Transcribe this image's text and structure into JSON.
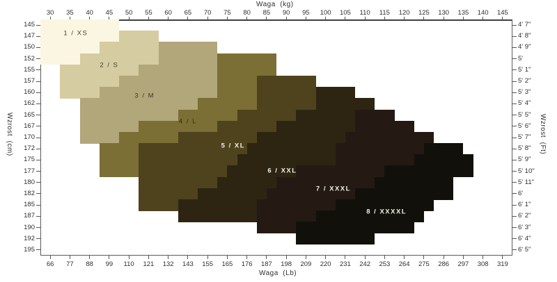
{
  "chart_data": {
    "type": "heatmap",
    "description": "Tights size chart: 8 stair-stepped size bands mapped over weight (x) and height (y)",
    "title_top": "Waga  (kg)",
    "title_bottom": "Waga  (Lb)",
    "title_left": "Wzrost  (cm)",
    "title_right": "Wzrost  (Ft)",
    "axes": {
      "kg_min": 27.5,
      "kg_max": 147.5,
      "row_count": 21,
      "grid": false,
      "top_kg": [
        30,
        35,
        40,
        45,
        50,
        55,
        60,
        65,
        70,
        75,
        80,
        85,
        90,
        95,
        100,
        105,
        110,
        115,
        120,
        125,
        130,
        135,
        140,
        145
      ],
      "bottom_lb": [
        66,
        77,
        88,
        99,
        110,
        121,
        132,
        143,
        155,
        165,
        176,
        187,
        198,
        209,
        220,
        231,
        242,
        253,
        264,
        275,
        286,
        297,
        308,
        319
      ],
      "left_cm": [
        145,
        147,
        150,
        152,
        155,
        157,
        160,
        162,
        165,
        167,
        170,
        172,
        175,
        177,
        180,
        182,
        185,
        187,
        190,
        192,
        195
      ],
      "right_ft": [
        "4' 7\"",
        "4' 8\"",
        "4' 9\"",
        "5'",
        "5' 1\"",
        "5' 2\"",
        "5' 3\"",
        "5' 4\"",
        "5' 5\"",
        "5' 6\"",
        "5' 7\"",
        "5' 8\"",
        "5' 9\"",
        "5' 10\"",
        "5' 11\"",
        "6'",
        "6' 1\"",
        "6' 2\"",
        "6' 3\"",
        "6' 4\"",
        "6' 5\""
      ]
    },
    "sizes": [
      {
        "id": 1,
        "label": "1 / XS",
        "color": "#faf6e1",
        "label_color": "#46412c",
        "label_bold": false,
        "label_kg": 36.5,
        "label_row": 0.74,
        "rows": [
          {
            "r": 0,
            "a": 27.5,
            "b": 47.5
          },
          {
            "r": 1,
            "a": 27.5,
            "b": 47.5
          },
          {
            "r": 2,
            "a": 27.5,
            "b": 42.5
          },
          {
            "r": 3,
            "a": 27.5,
            "b": 37.5
          }
        ]
      },
      {
        "id": 2,
        "label": "2 / S",
        "color": "#d5cca1",
        "label_color": "#46412c",
        "label_bold": false,
        "label_kg": 45,
        "label_row": 3.58,
        "rows": [
          {
            "r": 1,
            "a": 47.5,
            "b": 57.5
          },
          {
            "r": 2,
            "a": 42.5,
            "b": 57.5
          },
          {
            "r": 3,
            "a": 37.5,
            "b": 57.5
          },
          {
            "r": 4,
            "a": 32.5,
            "b": 52.5
          },
          {
            "r": 5,
            "a": 32.5,
            "b": 47.5
          },
          {
            "r": 6,
            "a": 32.5,
            "b": 42.5
          }
        ]
      },
      {
        "id": 3,
        "label": "3 / M",
        "color": "#b1a77b",
        "label_color": "#3e3a26",
        "label_bold": false,
        "label_kg": 54,
        "label_row": 6.3,
        "rows": [
          {
            "r": 2,
            "a": 57.5,
            "b": 72.5
          },
          {
            "r": 3,
            "a": 57.5,
            "b": 72.5
          },
          {
            "r": 4,
            "a": 52.5,
            "b": 72.5
          },
          {
            "r": 5,
            "a": 47.5,
            "b": 72.5
          },
          {
            "r": 6,
            "a": 42.5,
            "b": 72.5
          },
          {
            "r": 7,
            "a": 37.5,
            "b": 67.5
          },
          {
            "r": 8,
            "a": 37.5,
            "b": 62.5
          },
          {
            "r": 9,
            "a": 37.5,
            "b": 52.5
          },
          {
            "r": 10,
            "a": 37.5,
            "b": 47.5
          }
        ]
      },
      {
        "id": 4,
        "label": "4 / L",
        "color": "#7b6f35",
        "label_color": "#332e15",
        "label_bold": false,
        "label_kg": 65,
        "label_row": 8.58,
        "rows": [
          {
            "r": 3,
            "a": 72.5,
            "b": 87.5
          },
          {
            "r": 4,
            "a": 72.5,
            "b": 87.5
          },
          {
            "r": 5,
            "a": 72.5,
            "b": 82.5
          },
          {
            "r": 6,
            "a": 72.5,
            "b": 82.5
          },
          {
            "r": 7,
            "a": 67.5,
            "b": 82.5
          },
          {
            "r": 8,
            "a": 62.5,
            "b": 77.5
          },
          {
            "r": 9,
            "a": 52.5,
            "b": 72.5
          },
          {
            "r": 10,
            "a": 47.5,
            "b": 62.5
          },
          {
            "r": 11,
            "a": 42.5,
            "b": 52.5
          },
          {
            "r": 12,
            "a": 42.5,
            "b": 52.5
          },
          {
            "r": 13,
            "a": 42.5,
            "b": 52.5
          }
        ]
      },
      {
        "id": 5,
        "label": "5 / XL",
        "color": "#4e431d",
        "label_color": "#f2f0e6",
        "label_bold": true,
        "label_kg": 76.5,
        "label_row": 10.74,
        "rows": [
          {
            "r": 5,
            "a": 82.5,
            "b": 97.5
          },
          {
            "r": 6,
            "a": 82.5,
            "b": 97.5
          },
          {
            "r": 7,
            "a": 82.5,
            "b": 97.5
          },
          {
            "r": 8,
            "a": 77.5,
            "b": 92.5
          },
          {
            "r": 9,
            "a": 72.5,
            "b": 87.5
          },
          {
            "r": 10,
            "a": 62.5,
            "b": 82.5
          },
          {
            "r": 11,
            "a": 52.5,
            "b": 80
          },
          {
            "r": 12,
            "a": 52.5,
            "b": 77.5
          },
          {
            "r": 13,
            "a": 52.5,
            "b": 75
          },
          {
            "r": 14,
            "a": 52.5,
            "b": 72.5
          },
          {
            "r": 15,
            "a": 52.5,
            "b": 67.5
          },
          {
            "r": 16,
            "a": 52.5,
            "b": 62.5
          }
        ]
      },
      {
        "id": 6,
        "label": "6 / XXL",
        "color": "#2d2512",
        "label_color": "#f2f0e6",
        "label_bold": true,
        "label_kg": 89,
        "label_row": 12.96,
        "rows": [
          {
            "r": 6,
            "a": 97.5,
            "b": 107.5
          },
          {
            "r": 7,
            "a": 97.5,
            "b": 112.5
          },
          {
            "r": 8,
            "a": 92.5,
            "b": 107.5
          },
          {
            "r": 9,
            "a": 87.5,
            "b": 107.5
          },
          {
            "r": 10,
            "a": 82.5,
            "b": 105
          },
          {
            "r": 11,
            "a": 80,
            "b": 102.5
          },
          {
            "r": 12,
            "a": 77.5,
            "b": 102.5
          },
          {
            "r": 13,
            "a": 75,
            "b": 92.5
          },
          {
            "r": 14,
            "a": 72.5,
            "b": 87.5
          },
          {
            "r": 15,
            "a": 67.5,
            "b": 85
          },
          {
            "r": 16,
            "a": 62.5,
            "b": 82.5
          },
          {
            "r": 17,
            "a": 62.5,
            "b": 82.5
          }
        ]
      },
      {
        "id": 7,
        "label": "7 / XXXL",
        "color": "#241a13",
        "label_color": "#f2f0e6",
        "label_bold": true,
        "label_kg": 102,
        "label_row": 14.57,
        "rows": [
          {
            "r": 8,
            "a": 107.5,
            "b": 117.5
          },
          {
            "r": 9,
            "a": 107.5,
            "b": 122.5
          },
          {
            "r": 10,
            "a": 105,
            "b": 127.5
          },
          {
            "r": 11,
            "a": 102.5,
            "b": 125
          },
          {
            "r": 12,
            "a": 102.5,
            "b": 122.5
          },
          {
            "r": 13,
            "a": 92.5,
            "b": 115
          },
          {
            "r": 14,
            "a": 87.5,
            "b": 112.5
          },
          {
            "r": 15,
            "a": 85,
            "b": 107.5
          },
          {
            "r": 16,
            "a": 82.5,
            "b": 102.5
          },
          {
            "r": 17,
            "a": 82.5,
            "b": 97.5
          },
          {
            "r": 18,
            "a": 82.5,
            "b": 92.5
          }
        ]
      },
      {
        "id": 8,
        "label": "8 / XXXXL",
        "color": "#12100a",
        "label_color": "#f2f0e6",
        "label_bold": true,
        "label_kg": 115.5,
        "label_row": 16.61,
        "rows": [
          {
            "r": 11,
            "a": 125,
            "b": 135
          },
          {
            "r": 12,
            "a": 122.5,
            "b": 137.5
          },
          {
            "r": 13,
            "a": 115,
            "b": 137.5
          },
          {
            "r": 14,
            "a": 112.5,
            "b": 132.5
          },
          {
            "r": 15,
            "a": 107.5,
            "b": 132.5
          },
          {
            "r": 16,
            "a": 102.5,
            "b": 127.5
          },
          {
            "r": 17,
            "a": 97.5,
            "b": 125
          },
          {
            "r": 18,
            "a": 92.5,
            "b": 122.5
          },
          {
            "r": 19,
            "a": 92.5,
            "b": 112.5
          }
        ]
      }
    ]
  }
}
